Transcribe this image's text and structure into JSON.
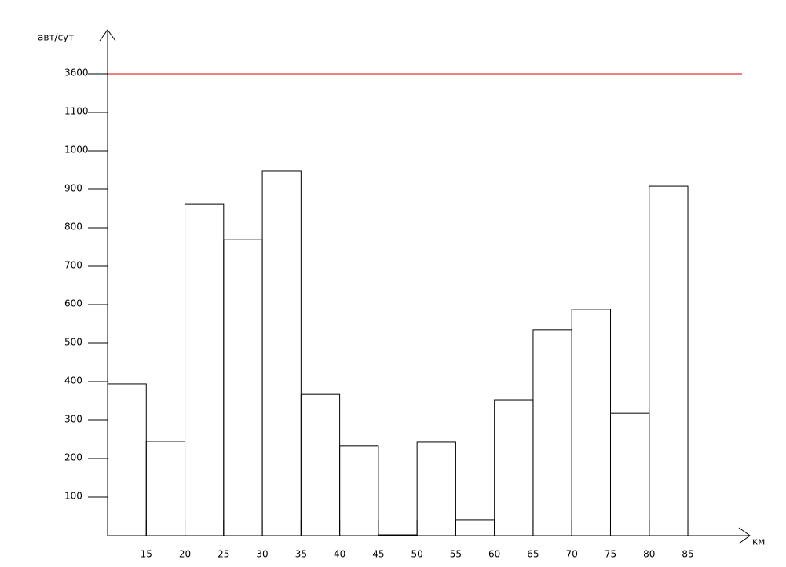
{
  "chart_data": {
    "type": "histogram",
    "y_label": "авт/сут",
    "x_label": "км",
    "bins": [
      10,
      15,
      20,
      25,
      30,
      35,
      40,
      45,
      50,
      55,
      60,
      65,
      70,
      75,
      80,
      85
    ],
    "values": [
      394,
      245,
      861,
      769,
      947,
      367,
      233,
      2,
      243,
      41,
      353,
      535,
      588,
      318,
      908
    ],
    "color": "#000000",
    "xlim": [
      10,
      92
    ],
    "xticks": [
      15,
      20,
      25,
      30,
      35,
      40,
      45,
      50,
      55,
      60,
      65,
      70,
      75,
      80,
      85
    ],
    "ylim": [
      0,
      3600
    ],
    "yticks": [
      100,
      200,
      300,
      400,
      500,
      600,
      700,
      800,
      900,
      1000,
      1100,
      3600
    ],
    "y_scale": "piecewise",
    "reference_line": {
      "value": 3600,
      "color": "#e00000"
    }
  }
}
